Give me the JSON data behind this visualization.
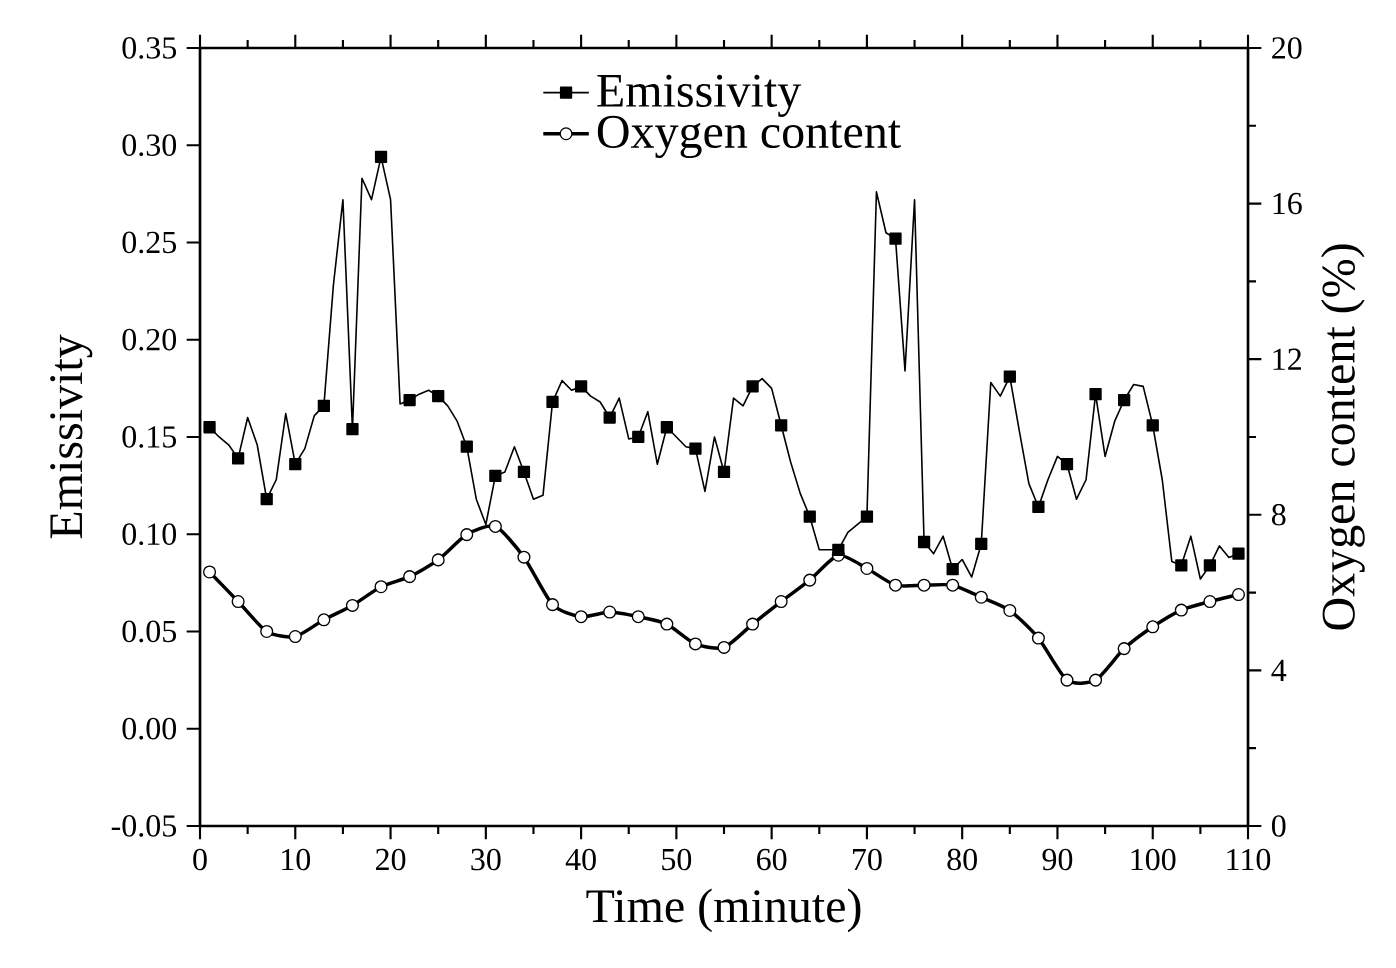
{
  "chart_data": {
    "type": "line",
    "xlabel": "Time (minute)",
    "ylabel": "Emissivity",
    "y2label": "Oxygen content (%)",
    "xlim": [
      0,
      110
    ],
    "xticks": [
      0,
      10,
      20,
      30,
      40,
      50,
      60,
      70,
      80,
      90,
      100,
      110
    ],
    "ylim": [
      -0.05,
      0.35
    ],
    "yticks": [
      {
        "value": -0.05,
        "label": "-0.05"
      },
      {
        "value": 0,
        "label": "0.00"
      },
      {
        "value": 0.05,
        "label": "0.05"
      },
      {
        "value": 0.1,
        "label": "0.10"
      },
      {
        "value": 0.15,
        "label": "0.15"
      },
      {
        "value": 0.2,
        "label": "0.20"
      },
      {
        "value": 0.25,
        "label": "0.25"
      },
      {
        "value": 0.3,
        "label": "0.30"
      },
      {
        "value": 0.35,
        "label": "0.35"
      }
    ],
    "y2lim": [
      0,
      20
    ],
    "y2ticks": [
      0,
      4,
      8,
      12,
      16,
      20
    ],
    "legend": "top",
    "grid": false,
    "series": [
      {
        "name": "Emissivity",
        "type": "scatter",
        "color": "#000000",
        "marker": "square",
        "x": [
          1,
          4,
          7,
          10,
          13,
          16,
          19,
          22,
          25,
          28,
          31,
          34,
          37,
          40,
          43,
          46,
          49,
          52,
          55,
          58,
          61,
          64,
          67,
          70,
          73,
          76,
          79,
          82,
          85,
          88,
          91,
          94,
          97,
          100,
          103,
          106,
          109
        ],
        "values": [
          0.155,
          0.139,
          0.118,
          0.136,
          0.166,
          0.154,
          0.294,
          0.169,
          0.171,
          0.145,
          0.13,
          0.132,
          0.168,
          0.176,
          0.16,
          0.15,
          0.155,
          0.144,
          0.132,
          0.176,
          0.156,
          0.109,
          0.092,
          0.109,
          0.252,
          0.096,
          0.082,
          0.095,
          0.181,
          0.114,
          0.136,
          0.172,
          0.169,
          0.156,
          0.084,
          0.084,
          0.09
        ]
      },
      {
        "color": "#000000",
        "marker": "none",
        "x": [
          1,
          2,
          3,
          4,
          5,
          6,
          7,
          8,
          9,
          10,
          11,
          12,
          13,
          14,
          15,
          16,
          17,
          18,
          19,
          20,
          21,
          22,
          23,
          24,
          25,
          26,
          27,
          28,
          29,
          30,
          31,
          32,
          33,
          34,
          35,
          36,
          37,
          38,
          39,
          40,
          41,
          42,
          43,
          44,
          45,
          46,
          47,
          48,
          49,
          50,
          51,
          52,
          53,
          54,
          55,
          56,
          57,
          58,
          59,
          60,
          61,
          62,
          63,
          64,
          65,
          66,
          67,
          68,
          69,
          70,
          71,
          72,
          73,
          74,
          75,
          76,
          77,
          78,
          79,
          80,
          81,
          82,
          83,
          84,
          85,
          86,
          87,
          88,
          89,
          90,
          91,
          92,
          93,
          94,
          95,
          96,
          97,
          98,
          99,
          100,
          101,
          102,
          103,
          104,
          105,
          106,
          107,
          108,
          109
        ],
        "values": [
          0.155,
          0.15,
          0.146,
          0.139,
          0.16,
          0.146,
          0.118,
          0.128,
          0.162,
          0.136,
          0.144,
          0.161,
          0.166,
          0.228,
          0.272,
          0.154,
          0.283,
          0.272,
          0.294,
          0.272,
          0.167,
          0.169,
          0.172,
          0.174,
          0.171,
          0.166,
          0.158,
          0.145,
          0.118,
          0.105,
          0.13,
          0.132,
          0.145,
          0.132,
          0.118,
          0.12,
          0.168,
          0.179,
          0.174,
          0.176,
          0.171,
          0.168,
          0.16,
          0.17,
          0.149,
          0.15,
          0.163,
          0.136,
          0.155,
          0.15,
          0.145,
          0.144,
          0.122,
          0.15,
          0.132,
          0.17,
          0.166,
          0.176,
          0.18,
          0.175,
          0.156,
          0.137,
          0.121,
          0.109,
          0.092,
          0.092,
          0.092,
          0.101,
          0.105,
          0.109,
          0.276,
          0.255,
          0.252,
          0.184,
          0.272,
          0.096,
          0.09,
          0.099,
          0.082,
          0.087,
          0.078,
          0.095,
          0.178,
          0.171,
          0.181,
          0.153,
          0.126,
          0.114,
          0.128,
          0.14,
          0.136,
          0.118,
          0.128,
          0.172,
          0.14,
          0.158,
          0.169,
          0.177,
          0.176,
          0.156,
          0.128,
          0.086,
          0.084,
          0.099,
          0.077,
          0.084,
          0.094,
          0.088,
          0.09
        ]
      },
      {
        "name": "Oxygen content",
        "color": "#000000",
        "axis": "y2",
        "marker": "circle",
        "x": [
          1,
          4,
          7,
          10,
          13,
          16,
          19,
          22,
          25,
          28,
          31,
          34,
          37,
          40,
          43,
          46,
          49,
          52,
          55,
          58,
          61,
          64,
          67,
          70,
          73,
          76,
          79,
          82,
          85,
          88,
          91,
          94,
          97,
          100,
          103,
          106,
          109
        ],
        "values": [
          6.53,
          5.77,
          5.0,
          4.87,
          5.3,
          5.67,
          6.15,
          6.41,
          6.84,
          7.49,
          7.7,
          6.91,
          5.69,
          5.38,
          5.5,
          5.38,
          5.19,
          4.68,
          4.59,
          5.19,
          5.77,
          6.32,
          6.96,
          6.62,
          6.19,
          6.19,
          6.19,
          5.88,
          5.54,
          4.83,
          3.75,
          3.75,
          4.56,
          5.12,
          5.55,
          5.77,
          5.95
        ]
      }
    ]
  }
}
